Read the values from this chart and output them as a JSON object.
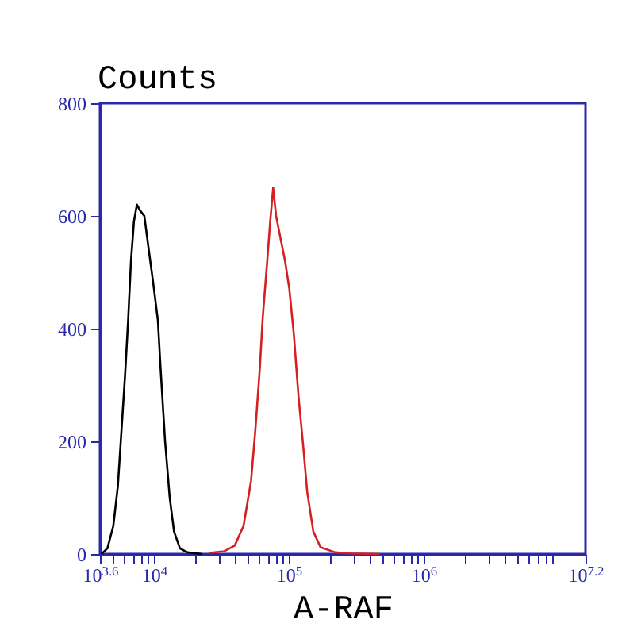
{
  "chart_data": {
    "type": "line",
    "ylabel": "Counts",
    "xlabel": "A-RAF",
    "log": "x",
    "xlim": [
      3981.07,
      15848932
    ],
    "ylim": [
      0,
      800
    ],
    "xticks": [
      {
        "value": 3981.07,
        "label": "10$^{3.6}$"
      },
      {
        "value": 5000,
        "label": null
      },
      {
        "value": 6000,
        "label": null
      },
      {
        "value": 7000,
        "label": null
      },
      {
        "value": 8000,
        "label": null
      },
      {
        "value": 9000,
        "label": null
      },
      {
        "value": 10000,
        "label": "10$^{4}$"
      },
      {
        "value": 20000,
        "label": null
      },
      {
        "value": 30000,
        "label": null
      },
      {
        "value": 40000,
        "label": null
      },
      {
        "value": 50000,
        "label": null
      },
      {
        "value": 60000,
        "label": null
      },
      {
        "value": 70000,
        "label": null
      },
      {
        "value": 80000,
        "label": null
      },
      {
        "value": 90000,
        "label": null
      },
      {
        "value": 100000,
        "label": "10$^{5}$"
      },
      {
        "value": 200000,
        "label": null
      },
      {
        "value": 300000,
        "label": null
      },
      {
        "value": 400000,
        "label": null
      },
      {
        "value": 500000,
        "label": null
      },
      {
        "value": 600000,
        "label": null
      },
      {
        "value": 700000,
        "label": null
      },
      {
        "value": 800000,
        "label": null
      },
      {
        "value": 900000,
        "label": null
      },
      {
        "value": 1000000,
        "label": "10$^{6}$"
      },
      {
        "value": 2000000,
        "label": null
      },
      {
        "value": 3000000,
        "label": null
      },
      {
        "value": 4000000,
        "label": null
      },
      {
        "value": 5000000,
        "label": null
      },
      {
        "value": 6000000,
        "label": null
      },
      {
        "value": 7000000,
        "label": null
      },
      {
        "value": 8000000,
        "label": null
      },
      {
        "value": 9000000,
        "label": null
      },
      {
        "value": 15848932,
        "label": "10$^{7.2}$"
      }
    ],
    "yticks": [
      0,
      200,
      400,
      600,
      800
    ],
    "grid": false,
    "legend": false,
    "marker": "none",
    "line_style": "solid",
    "series": [
      {
        "color": "#000000",
        "x": [
          4080,
          4520,
          5000,
          5400,
          5680,
          6120,
          6440,
          6760,
          7110,
          7480,
          7870,
          8490,
          9160,
          9890,
          10700,
          11200,
          12100,
          13100,
          14100,
          15600,
          17700,
          22800
        ],
        "values": [
          0,
          10,
          50,
          120,
          200,
          320,
          415,
          520,
          590,
          620,
          610,
          600,
          540,
          480,
          415,
          330,
          200,
          100,
          40,
          10,
          3,
          0
        ]
      },
      {
        "color": "#d42020",
        "x": [
          25800,
          33300,
          39700,
          46200,
          52500,
          56500,
          61000,
          64100,
          69200,
          72800,
          76600,
          80500,
          86900,
          93800,
          101000,
          109000,
          118000,
          127000,
          137000,
          152000,
          172000,
          221000,
          285000,
          472000
        ],
        "values": [
          2,
          5,
          15,
          50,
          130,
          220,
          330,
          420,
          520,
          590,
          650,
          600,
          560,
          520,
          470,
          390,
          280,
          200,
          110,
          40,
          12,
          3,
          1,
          0
        ]
      }
    ]
  }
}
